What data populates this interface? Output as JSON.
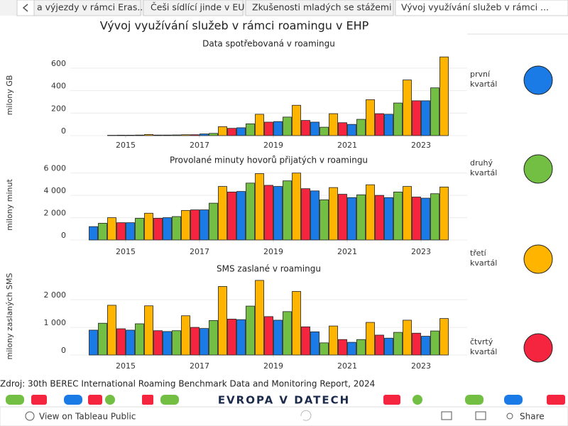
{
  "tabs": [
    "a výjezdy v rámci Eras...",
    "Češi sídlící jinde v EU",
    "Zkušenosti mladých se stážemi",
    "Vývoj využívání služeb v rámci ..."
  ],
  "title": "Vývoj využívání služeb v rámci roamingu v EHP",
  "source": "Zdroj: 30th BEREC International Roaming Benchmark Data and Monitoring Report, 2024",
  "logo": "EVROPA V DATECH",
  "toolbar": {
    "view": "View on Tableau Public",
    "share": "Share"
  },
  "chart_data": [
    {
      "type": "bar",
      "title": "Data spotřebovaná v roamingu",
      "y_label": "milony GB",
      "x": [
        2014,
        2015,
        2016,
        2017,
        2018,
        2019,
        2020,
        2021,
        2022,
        2023
      ],
      "xlim": [
        2013.5,
        2024.25
      ],
      "xticks": [
        2015,
        2017,
        2019,
        2021,
        2023
      ],
      "ylim": [
        0,
        720
      ],
      "yticks": [
        0,
        200,
        400,
        600
      ],
      "grid": true,
      "series": [
        {
          "name": "první kvartál",
          "color": "#1a7be6",
          "values": [
            null,
            4,
            5,
            15,
            70,
            125,
            120,
            100,
            190,
            310
          ]
        },
        {
          "name": "druhý kvartál",
          "color": "#72bf44",
          "values": [
            null,
            5,
            6,
            20,
            105,
            165,
            75,
            145,
            290,
            425
          ]
        },
        {
          "name": "třetí kvartál",
          "color": "#ffb400",
          "values": [
            3,
            10,
            8,
            80,
            190,
            270,
            195,
            320,
            495,
            700
          ]
        },
        {
          "name": "čtvrtý kvartál",
          "color": "#f5253f",
          "values": [
            4,
            5,
            8,
            65,
            120,
            135,
            115,
            195,
            310,
            null
          ]
        }
      ]
    },
    {
      "type": "bar",
      "title": "Provolané minuty hovorů přijatých v  roamingu",
      "y_label": "milony minut",
      "x": [
        2014,
        2015,
        2016,
        2017,
        2018,
        2019,
        2020,
        2021,
        2022,
        2023
      ],
      "xlim": [
        2013.5,
        2024.25
      ],
      "xticks": [
        2015,
        2017,
        2019,
        2021,
        2023
      ],
      "ylim": [
        0,
        6300
      ],
      "yticks": [
        0,
        {
          "value": 2000,
          "label": "2 000"
        },
        {
          "value": 4000,
          "label": "4 000"
        },
        {
          "value": 6000,
          "label": "6 000"
        }
      ],
      "grid": true,
      "series": [
        {
          "name": "první kvartál",
          "color": "#1a7be6",
          "values": [
            1200,
            1550,
            2000,
            2700,
            4350,
            4800,
            4400,
            3800,
            3800,
            3750
          ]
        },
        {
          "name": "druhý kvartál",
          "color": "#72bf44",
          "values": [
            1500,
            1950,
            2100,
            3300,
            5100,
            5300,
            3600,
            4050,
            4300,
            4150
          ]
        },
        {
          "name": "třetí kvartál",
          "color": "#ffb400",
          "values": [
            2000,
            2400,
            2650,
            4800,
            5950,
            6000,
            4700,
            4950,
            4800,
            4750
          ]
        },
        {
          "name": "čtvrtý kvartál",
          "color": "#f5253f",
          "values": [
            1550,
            1950,
            2700,
            4300,
            4900,
            4600,
            4100,
            4000,
            3850,
            null
          ]
        }
      ]
    },
    {
      "type": "bar",
      "title": "SMS zaslané v roamingu",
      "y_label": "milony zaslaných SMS",
      "x": [
        2014,
        2015,
        2016,
        2017,
        2018,
        2019,
        2020,
        2021,
        2022,
        2023
      ],
      "xlim": [
        2013.5,
        2024.25
      ],
      "xticks": [
        2015,
        2017,
        2019,
        2021,
        2023
      ],
      "ylim": [
        0,
        2800
      ],
      "yticks": [
        0,
        {
          "value": 1000,
          "label": "1 000"
        },
        {
          "value": 2000,
          "label": "2 000"
        }
      ],
      "grid": true,
      "series": [
        {
          "name": "první kvartál",
          "color": "#1a7be6",
          "values": [
            900,
            900,
            850,
            960,
            1280,
            1260,
            840,
            460,
            610,
            680
          ]
        },
        {
          "name": "druhý kvartál",
          "color": "#72bf44",
          "values": [
            1150,
            1130,
            880,
            1250,
            1770,
            1570,
            440,
            560,
            820,
            870
          ]
        },
        {
          "name": "třetí kvartál",
          "color": "#ffb400",
          "values": [
            1800,
            1780,
            1420,
            2480,
            2700,
            2300,
            1050,
            1180,
            1260,
            1320
          ]
        },
        {
          "name": "čtvrtý kvartál",
          "color": "#f5253f",
          "values": [
            950,
            880,
            1000,
            1300,
            1390,
            1020,
            560,
            720,
            790,
            null
          ]
        }
      ]
    }
  ]
}
